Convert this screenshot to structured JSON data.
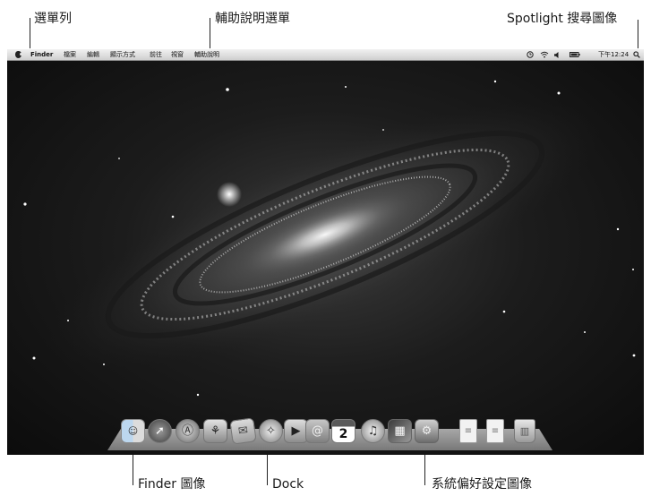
{
  "callouts": {
    "menubar_label": "選單列",
    "help_menu_label": "輔助說明選單",
    "spotlight_label": "Spotlight 搜尋圖像",
    "finder_icon_label": "Finder 圖像",
    "dock_label": "Dock",
    "system_prefs_label": "系統偏好設定圖像"
  },
  "menubar": {
    "app_name": "Finder",
    "menus": [
      "檔案",
      "編輯",
      "顯示方式",
      "前往",
      "視窗",
      "輔助說明"
    ],
    "clock": "下午12:24"
  },
  "icons": {
    "apple": "apple-icon",
    "time_machine": "time-machine-icon",
    "wifi": "wifi-icon",
    "volume": "volume-icon",
    "battery": "battery-icon",
    "spotlight": "magnifier-icon"
  },
  "dock": {
    "calendar_day": "2",
    "items": [
      "finder-icon",
      "launchpad-icon",
      "app-store-icon",
      "preview-icon",
      "mail-icon",
      "safari-icon",
      "facetime-icon",
      "address-book-icon",
      "calendar-icon",
      "itunes-icon",
      "photo-booth-icon",
      "system-preferences-icon",
      "document-icon",
      "document-icon",
      "trash-icon"
    ]
  }
}
